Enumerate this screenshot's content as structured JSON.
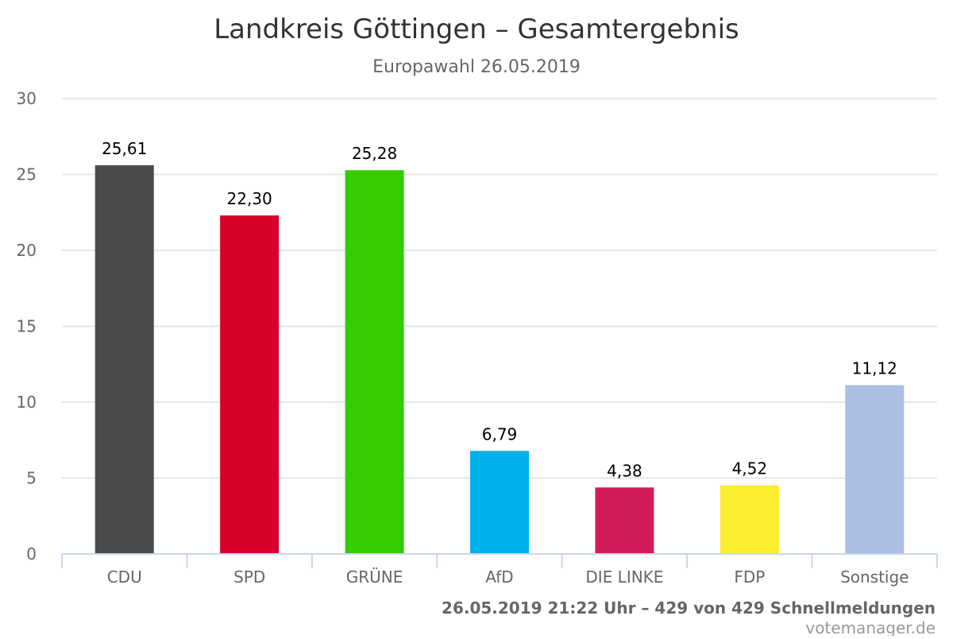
{
  "chart_data": {
    "type": "bar",
    "title": "Landkreis Göttingen – Gesamtergebnis",
    "subtitle": "Europawahl 26.05.2019",
    "categories": [
      "CDU",
      "SPD",
      "GRÜNE",
      "AfD",
      "DIE LINKE",
      "FDP",
      "Sonstige"
    ],
    "values": [
      25.61,
      22.3,
      25.28,
      6.79,
      4.38,
      4.52,
      11.12
    ],
    "value_labels": [
      "25,61",
      "22,30",
      "25,28",
      "6,79",
      "4,38",
      "4,52",
      "11,12"
    ],
    "colors": [
      "#4a4a4a",
      "#d7002a",
      "#33cc00",
      "#00b0ec",
      "#d21c5a",
      "#fbec2f",
      "#abbfe3"
    ],
    "ylim": [
      0,
      30
    ],
    "yticks": [
      0,
      5,
      10,
      15,
      20,
      25,
      30
    ],
    "xlabel": "",
    "ylabel": "",
    "grid": true,
    "legend": false
  },
  "footer": {
    "credit": "26.05.2019 21:22 Uhr – 429 von 429 Schnellmeldungen",
    "source": "votemanager.de"
  }
}
